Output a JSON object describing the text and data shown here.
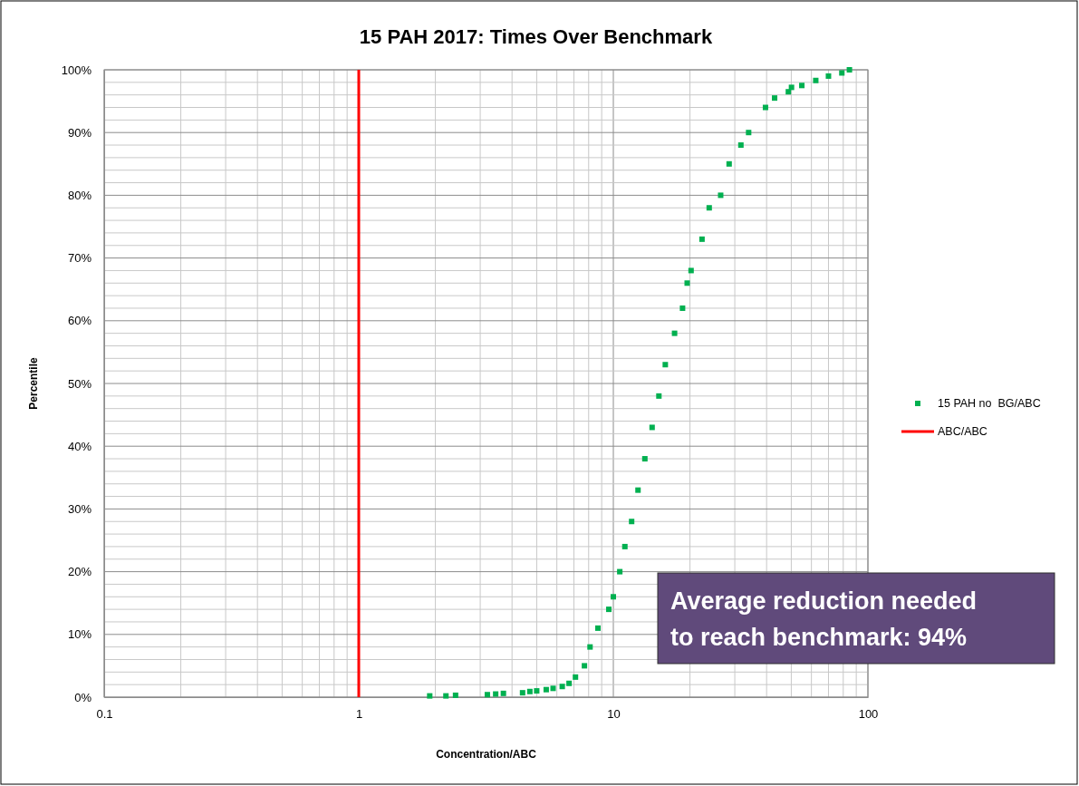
{
  "chart_data": {
    "type": "scatter",
    "title": "15 PAH 2017: Times Over Benchmark",
    "xlabel": "Concentration/ABC",
    "ylabel": "Percentile",
    "log": "x",
    "grid": true,
    "legend": "right",
    "xlim": [
      0.1,
      100
    ],
    "ylim": [
      0,
      100
    ],
    "xticks": [
      0.1,
      {
        "value": 0.2,
        "label": null
      },
      {
        "value": 0.3,
        "label": null
      },
      {
        "value": 0.4,
        "label": null
      },
      {
        "value": 0.5,
        "label": null
      },
      {
        "value": 0.6,
        "label": null
      },
      {
        "value": 0.7,
        "label": null
      },
      {
        "value": 0.8,
        "label": null
      },
      {
        "value": 0.9,
        "label": null
      },
      1,
      {
        "value": 2,
        "label": null
      },
      {
        "value": 3,
        "label": null
      },
      {
        "value": 4,
        "label": null
      },
      {
        "value": 5,
        "label": null
      },
      {
        "value": 6,
        "label": null
      },
      {
        "value": 7,
        "label": null
      },
      {
        "value": 8,
        "label": null
      },
      {
        "value": 9,
        "label": null
      },
      10,
      {
        "value": 20,
        "label": null
      },
      {
        "value": 30,
        "label": null
      },
      {
        "value": 40,
        "label": null
      },
      {
        "value": 50,
        "label": null
      },
      {
        "value": 60,
        "label": null
      },
      {
        "value": 70,
        "label": null
      },
      {
        "value": 80,
        "label": null
      },
      {
        "value": 90,
        "label": null
      },
      100
    ],
    "yticks": [
      {
        "value": 0,
        "label": "0%"
      },
      {
        "value": 2,
        "label": null
      },
      {
        "value": 4,
        "label": null
      },
      {
        "value": 6,
        "label": null
      },
      {
        "value": 8,
        "label": null
      },
      {
        "value": 10,
        "label": "10%"
      },
      {
        "value": 12,
        "label": null
      },
      {
        "value": 14,
        "label": null
      },
      {
        "value": 16,
        "label": null
      },
      {
        "value": 18,
        "label": null
      },
      {
        "value": 20,
        "label": "20%"
      },
      {
        "value": 22,
        "label": null
      },
      {
        "value": 24,
        "label": null
      },
      {
        "value": 26,
        "label": null
      },
      {
        "value": 28,
        "label": null
      },
      {
        "value": 30,
        "label": "30%"
      },
      {
        "value": 32,
        "label": null
      },
      {
        "value": 34,
        "label": null
      },
      {
        "value": 36,
        "label": null
      },
      {
        "value": 38,
        "label": null
      },
      {
        "value": 40,
        "label": "40%"
      },
      {
        "value": 42,
        "label": null
      },
      {
        "value": 44,
        "label": null
      },
      {
        "value": 46,
        "label": null
      },
      {
        "value": 48,
        "label": null
      },
      {
        "value": 50,
        "label": "50%"
      },
      {
        "value": 52,
        "label": null
      },
      {
        "value": 54,
        "label": null
      },
      {
        "value": 56,
        "label": null
      },
      {
        "value": 58,
        "label": null
      },
      {
        "value": 60,
        "label": "60%"
      },
      {
        "value": 62,
        "label": null
      },
      {
        "value": 64,
        "label": null
      },
      {
        "value": 66,
        "label": null
      },
      {
        "value": 68,
        "label": null
      },
      {
        "value": 70,
        "label": "70%"
      },
      {
        "value": 72,
        "label": null
      },
      {
        "value": 74,
        "label": null
      },
      {
        "value": 76,
        "label": null
      },
      {
        "value": 78,
        "label": null
      },
      {
        "value": 80,
        "label": "80%"
      },
      {
        "value": 82,
        "label": null
      },
      {
        "value": 84,
        "label": null
      },
      {
        "value": 86,
        "label": null
      },
      {
        "value": 88,
        "label": null
      },
      {
        "value": 90,
        "label": "90%"
      },
      {
        "value": 92,
        "label": null
      },
      {
        "value": 94,
        "label": null
      },
      {
        "value": 96,
        "label": null
      },
      {
        "value": 98,
        "label": null
      },
      {
        "value": 100,
        "label": "100%"
      }
    ],
    "annotations": [
      "Average reduction needed to reach benchmark: 94%"
    ],
    "series": [
      {
        "name": "15 PAH no  BG/ABC",
        "color": "#00b050",
        "marker": "square",
        "x": [
          1.9,
          2.2,
          2.4,
          3.2,
          3.45,
          3.7,
          4.4,
          4.7,
          5.0,
          5.45,
          5.8,
          6.3,
          6.7,
          7.1,
          7.7,
          8.1,
          8.7,
          9.6,
          10,
          10.6,
          11.1,
          11.8,
          12.5,
          13.3,
          14.2,
          15.1,
          16.0,
          17.4,
          18.7,
          19.5,
          20.2,
          22.3,
          23.8,
          26.4,
          28.5,
          31.7,
          34,
          39.6,
          43,
          48.7,
          50.1,
          55,
          62.4,
          70,
          79,
          84.6
        ],
        "values": [
          0.2,
          0.2,
          0.3,
          0.4,
          0.5,
          0.6,
          0.7,
          0.9,
          1,
          1.2,
          1.4,
          1.7,
          2.2,
          3.2,
          5,
          8,
          11,
          14,
          16,
          20,
          24,
          28,
          33,
          38,
          43,
          48,
          53,
          58,
          62,
          66,
          68,
          73,
          78,
          80,
          85,
          88,
          90,
          94,
          95.5,
          96.5,
          97.2,
          97.5,
          98.3,
          99,
          99.5,
          100
        ]
      },
      {
        "name": "ABC/ABC",
        "color": "#ff0000",
        "type": "line",
        "marker": "none",
        "x": [
          1,
          1
        ],
        "values": [
          0,
          100
        ]
      }
    ]
  }
}
